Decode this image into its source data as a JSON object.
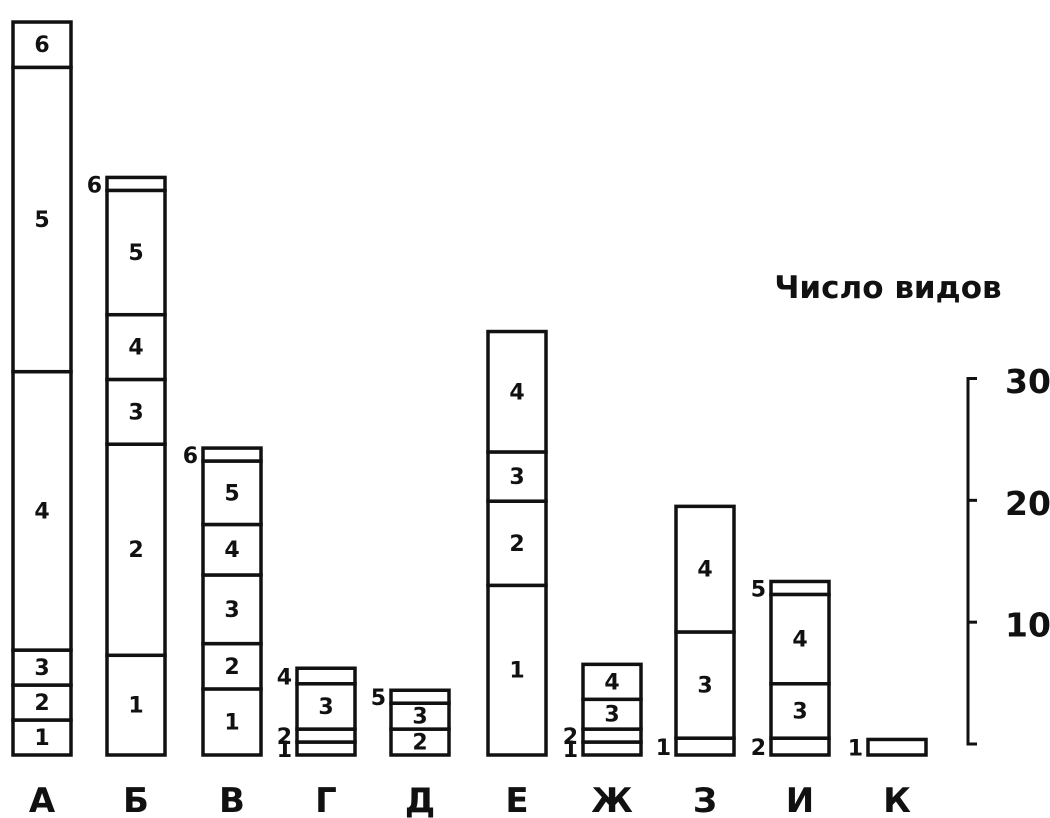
{
  "chart_data": {
    "type": "bar",
    "subtype": "stacked",
    "ylabel": "Число видов",
    "ylim": [
      0,
      30
    ],
    "yticks": [
      10,
      20,
      30
    ],
    "categories": [
      "А",
      "Б",
      "В",
      "Г",
      "Д",
      "Е",
      "Ж",
      "З",
      "И",
      "К"
    ],
    "bars": [
      {
        "category": "А",
        "segments": [
          {
            "label": "1",
            "value": 2.7
          },
          {
            "label": "2",
            "value": 2.7
          },
          {
            "label": "3",
            "value": 2.7
          },
          {
            "label": "4",
            "value": 21.5
          },
          {
            "label": "5",
            "value": 23.5
          },
          {
            "label": "6",
            "value": 3.5
          }
        ]
      },
      {
        "category": "Б",
        "segments": [
          {
            "label": "1",
            "value": 7.7
          },
          {
            "label": "2",
            "value": 16.3
          },
          {
            "label": "3",
            "value": 5.0
          },
          {
            "label": "4",
            "value": 5.0
          },
          {
            "label": "5",
            "value": 9.6
          },
          {
            "label": "6",
            "value": 1.0
          }
        ]
      },
      {
        "category": "В",
        "segments": [
          {
            "label": "1",
            "value": 5.1
          },
          {
            "label": "2",
            "value": 3.5
          },
          {
            "label": "3",
            "value": 5.3
          },
          {
            "label": "4",
            "value": 3.9
          },
          {
            "label": "5",
            "value": 4.9
          },
          {
            "label": "6",
            "value": 1.0
          }
        ]
      },
      {
        "category": "Г",
        "segments": [
          {
            "label": "1",
            "value": 1.0
          },
          {
            "label": "2",
            "value": 1.0
          },
          {
            "label": "3",
            "value": 3.5
          },
          {
            "label": "4",
            "value": 1.2
          }
        ]
      },
      {
        "category": "Д",
        "segments": [
          {
            "label": "2",
            "value": 2.0
          },
          {
            "label": "3",
            "value": 2.0
          },
          {
            "label": "5",
            "value": 1.0
          }
        ]
      },
      {
        "category": "Е",
        "segments": [
          {
            "label": "1",
            "value": 13.1
          },
          {
            "label": "2",
            "value": 6.5
          },
          {
            "label": "3",
            "value": 3.8
          },
          {
            "label": "4",
            "value": 9.3
          }
        ]
      },
      {
        "category": "Ж",
        "segments": [
          {
            "label": "1",
            "value": 1.0
          },
          {
            "label": "2",
            "value": 1.0
          },
          {
            "label": "3",
            "value": 2.3
          },
          {
            "label": "4",
            "value": 2.7
          }
        ]
      },
      {
        "category": "З",
        "segments": [
          {
            "label": "1",
            "value": 1.3
          },
          {
            "label": "3",
            "value": 8.2
          },
          {
            "label": "4",
            "value": 9.7
          }
        ]
      },
      {
        "category": "И",
        "segments": [
          {
            "label": "2",
            "value": 1.3
          },
          {
            "label": "3",
            "value": 4.2
          },
          {
            "label": "4",
            "value": 6.9
          },
          {
            "label": "5",
            "value": 1.0
          }
        ]
      },
      {
        "category": "К",
        "segments": [
          {
            "label": "1",
            "value": 1.2
          }
        ]
      }
    ]
  }
}
